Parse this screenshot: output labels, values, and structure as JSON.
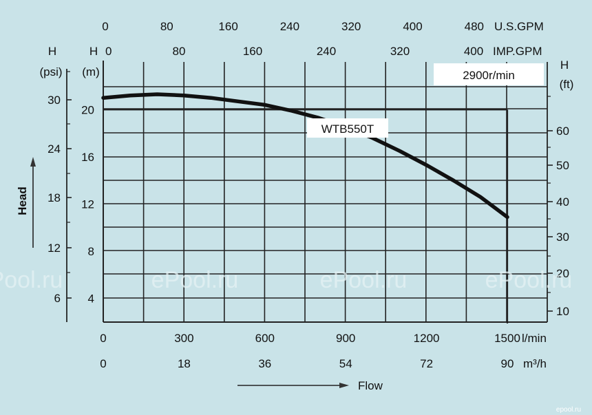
{
  "chart_data": {
    "type": "line",
    "title": "",
    "xlabel": "Flow",
    "ylabel": "Head",
    "speed_label": "2900r/min",
    "series": [
      {
        "name": "WTB550T",
        "x": [
          0,
          100,
          200,
          300,
          400,
          500,
          600,
          700,
          800,
          900,
          1000,
          1100,
          1200,
          1300,
          1400,
          1500
        ],
        "y": [
          21.0,
          21.2,
          21.3,
          21.2,
          21.0,
          20.7,
          20.4,
          19.9,
          19.3,
          18.5,
          17.6,
          16.5,
          15.3,
          14.0,
          12.6,
          10.9
        ]
      }
    ],
    "xlim": [
      0,
      1500
    ],
    "ylim": [
      2,
      22
    ],
    "grid": true,
    "reference_point": {
      "x": 1500,
      "y": 20
    },
    "axes": {
      "bottom_lpm": {
        "unit": "l/min",
        "ticks": [
          "0",
          "300",
          "600",
          "900",
          "1200",
          "1500"
        ]
      },
      "bottom_m3h": {
        "unit": "m³/h",
        "ticks": [
          "0",
          "18",
          "36",
          "54",
          "72",
          "90"
        ]
      },
      "top_usgpm": {
        "unit": "U.S.GPM",
        "ticks": [
          "0",
          "80",
          "160",
          "240",
          "320",
          "400",
          "480"
        ]
      },
      "top_impgpm": {
        "unit": "IMP.GPM",
        "ticks": [
          "0",
          "80",
          "160",
          "240",
          "320",
          "400"
        ]
      },
      "left_m": {
        "title": "H",
        "unit": "(m)",
        "ticks": [
          "4",
          "8",
          "12",
          "16",
          "20"
        ]
      },
      "left_psi": {
        "title": "H",
        "unit": "(psi)",
        "ticks": [
          "6",
          "12",
          "18",
          "24",
          "30"
        ]
      },
      "right_ft": {
        "title": "H",
        "unit": "(ft)",
        "ticks": [
          "10",
          "20",
          "30",
          "40",
          "50",
          "60"
        ]
      }
    },
    "colors": {
      "background": "#c9e3e8",
      "grid": "#222222",
      "curve": "#111111",
      "label_box": "#ffffff"
    }
  },
  "watermarks": [
    "ePool.ru",
    "ePool.ru",
    "ePool.ru",
    "ePool.ru",
    "ePool.ru"
  ],
  "corner_watermark": "epool.ru"
}
